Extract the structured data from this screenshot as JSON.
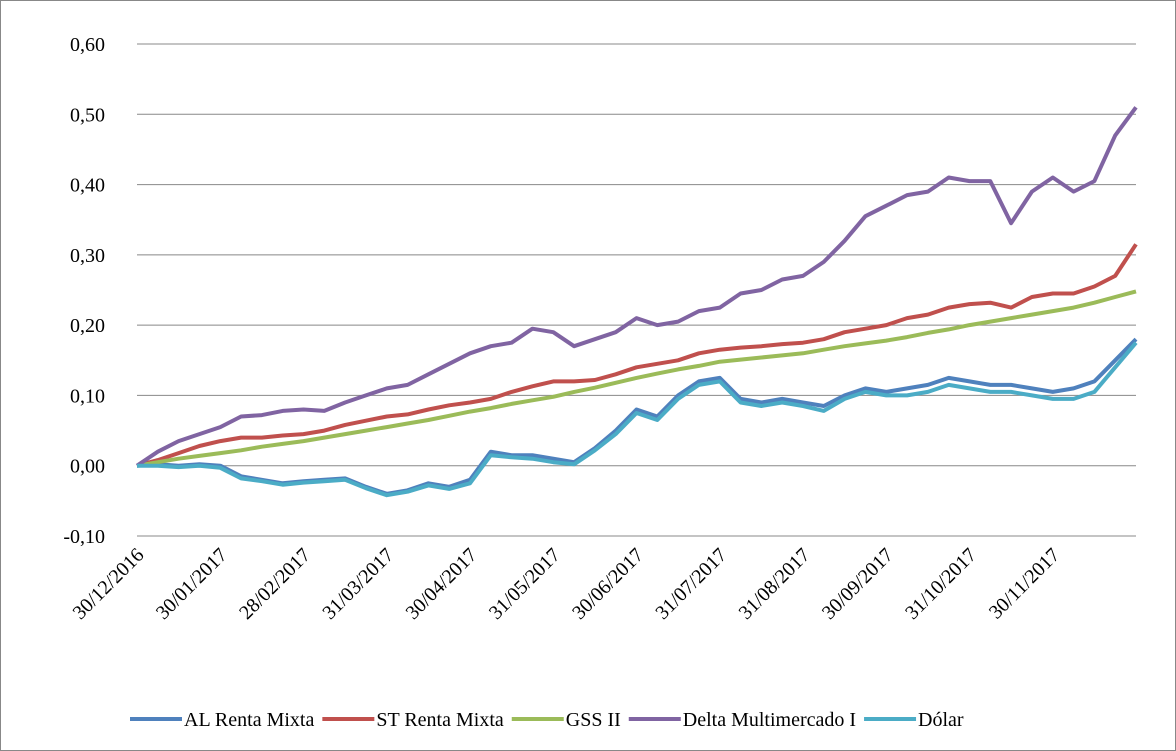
{
  "chart_data": {
    "type": "line",
    "categories": [
      "30/12/2016",
      null,
      null,
      null,
      "30/01/2017",
      null,
      null,
      null,
      "28/02/2017",
      null,
      null,
      null,
      "31/03/2017",
      null,
      null,
      null,
      "30/04/2017",
      null,
      null,
      null,
      "31/05/2017",
      null,
      null,
      null,
      "30/06/2017",
      null,
      null,
      null,
      "31/07/2017",
      null,
      null,
      null,
      "31/08/2017",
      null,
      null,
      null,
      "30/09/2017",
      null,
      null,
      null,
      "31/10/2017",
      null,
      null,
      null,
      "30/11/2017",
      null,
      null,
      null,
      null
    ],
    "series": [
      {
        "name": "AL Renta Mixta",
        "color": "#4f81bd",
        "values": [
          0,
          0.002,
          0,
          0.002,
          0,
          -0.015,
          -0.02,
          -0.025,
          -0.022,
          -0.02,
          -0.018,
          -0.03,
          -0.04,
          -0.035,
          -0.025,
          -0.03,
          -0.02,
          0.02,
          0.015,
          0.015,
          0.01,
          0.005,
          0.025,
          0.05,
          0.08,
          0.07,
          0.1,
          0.12,
          0.125,
          0.095,
          0.09,
          0.095,
          0.09,
          0.085,
          0.1,
          0.11,
          0.105,
          0.11,
          0.115,
          0.125,
          0.12,
          0.115,
          0.115,
          0.11,
          0.105,
          0.11,
          0.12,
          0.15,
          0.18
        ]
      },
      {
        "name": "ST Renta Mixta",
        "color": "#c0504d",
        "values": [
          0,
          0.008,
          0.018,
          0.028,
          0.035,
          0.04,
          0.04,
          0.043,
          0.045,
          0.05,
          0.058,
          0.064,
          0.07,
          0.073,
          0.08,
          0.086,
          0.09,
          0.095,
          0.105,
          0.113,
          0.12,
          0.12,
          0.122,
          0.13,
          0.14,
          0.145,
          0.15,
          0.16,
          0.165,
          0.168,
          0.17,
          0.173,
          0.175,
          0.18,
          0.19,
          0.195,
          0.2,
          0.21,
          0.215,
          0.225,
          0.23,
          0.232,
          0.225,
          0.24,
          0.245,
          0.245,
          0.255,
          0.27,
          0.315
        ]
      },
      {
        "name": "GSS II",
        "color": "#9bbb59",
        "values": [
          0,
          0.005,
          0.01,
          0.014,
          0.018,
          0.022,
          0.027,
          0.031,
          0.035,
          0.04,
          0.045,
          0.05,
          0.055,
          0.06,
          0.065,
          0.071,
          0.077,
          0.082,
          0.088,
          0.093,
          0.098,
          0.105,
          0.111,
          0.118,
          0.125,
          0.131,
          0.137,
          0.142,
          0.148,
          0.151,
          0.154,
          0.157,
          0.16,
          0.165,
          0.17,
          0.174,
          0.178,
          0.183,
          0.189,
          0.194,
          0.2,
          0.205,
          0.21,
          0.215,
          0.22,
          0.225,
          0.232,
          0.24,
          0.248
        ]
      },
      {
        "name": "Delta Multimercado I",
        "color": "#8064a2",
        "values": [
          0,
          0.02,
          0.035,
          0.045,
          0.055,
          0.07,
          0.072,
          0.078,
          0.08,
          0.078,
          0.09,
          0.1,
          0.11,
          0.115,
          0.13,
          0.145,
          0.16,
          0.17,
          0.175,
          0.195,
          0.19,
          0.17,
          0.18,
          0.19,
          0.21,
          0.2,
          0.205,
          0.22,
          0.225,
          0.245,
          0.25,
          0.265,
          0.27,
          0.29,
          0.32,
          0.355,
          0.37,
          0.385,
          0.39,
          0.41,
          0.405,
          0.405,
          0.345,
          0.39,
          0.41,
          0.39,
          0.405,
          0.47,
          0.51
        ]
      },
      {
        "name": "Dólar",
        "color": "#4bacc6",
        "values": [
          0,
          0,
          -0.002,
          0,
          -0.003,
          -0.018,
          -0.022,
          -0.027,
          -0.024,
          -0.022,
          -0.02,
          -0.032,
          -0.042,
          -0.037,
          -0.028,
          -0.033,
          -0.025,
          0.015,
          0.012,
          0.01,
          0.005,
          0.002,
          0.022,
          0.045,
          0.075,
          0.065,
          0.095,
          0.115,
          0.12,
          0.09,
          0.085,
          0.09,
          0.085,
          0.078,
          0.095,
          0.105,
          0.1,
          0.1,
          0.105,
          0.115,
          0.11,
          0.105,
          0.105,
          0.1,
          0.095,
          0.095,
          0.105,
          0.14,
          0.175
        ]
      }
    ],
    "ylim": [
      -0.1,
      0.6
    ],
    "yticks": [
      {
        "value": -0.1,
        "label": "-0,10"
      },
      {
        "value": 0,
        "label": "0,00"
      },
      {
        "value": 0.1,
        "label": "0,10"
      },
      {
        "value": 0.2,
        "label": "0,20"
      },
      {
        "value": 0.3,
        "label": "0,30"
      },
      {
        "value": 0.4,
        "label": "0,40"
      },
      {
        "value": 0.5,
        "label": "0,50"
      },
      {
        "value": 0.6,
        "label": "0,60"
      }
    ],
    "grid": true,
    "legend": "bottom"
  }
}
